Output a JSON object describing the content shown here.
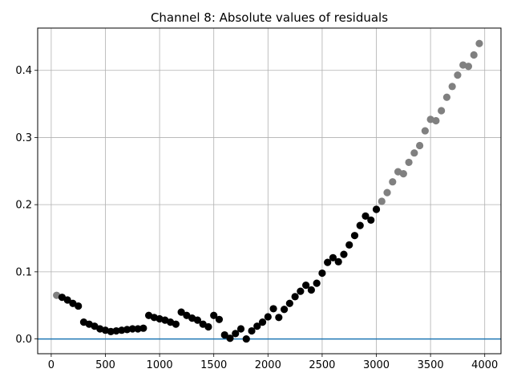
{
  "chart_data": {
    "type": "scatter",
    "title": "Channel 8: Absolute values of residuals",
    "xlabel": "",
    "ylabel": "",
    "xlim": [
      -125,
      4150
    ],
    "ylim": [
      -0.022,
      0.463
    ],
    "xticks": [
      0,
      500,
      1000,
      1500,
      2000,
      2500,
      3000,
      3500,
      4000
    ],
    "yticks": [
      0.0,
      0.1,
      0.2,
      0.3,
      0.4
    ],
    "ytick_labels": [
      "0.0",
      "0.1",
      "0.2",
      "0.3",
      "0.4"
    ],
    "grid": true,
    "hline": {
      "y": 0.0,
      "color": "#1f77b4"
    },
    "colors": {
      "inlier": "#000000",
      "outlier": "#808080"
    },
    "series": [
      {
        "color": "#808080",
        "points": [
          [
            50,
            0.065
          ],
          [
            3000,
            0.193
          ],
          [
            3050,
            0.205
          ],
          [
            3100,
            0.218
          ],
          [
            3150,
            0.234
          ],
          [
            3200,
            0.249
          ],
          [
            3250,
            0.246
          ],
          [
            3300,
            0.263
          ],
          [
            3350,
            0.277
          ],
          [
            3400,
            0.288
          ],
          [
            3450,
            0.31
          ],
          [
            3500,
            0.327
          ],
          [
            3550,
            0.325
          ],
          [
            3600,
            0.34
          ],
          [
            3650,
            0.36
          ],
          [
            3700,
            0.376
          ],
          [
            3750,
            0.393
          ],
          [
            3800,
            0.408
          ],
          [
            3850,
            0.406
          ],
          [
            3900,
            0.423
          ],
          [
            3950,
            0.44
          ]
        ]
      },
      {
        "color": "#000000",
        "points": [
          [
            100,
            0.062
          ],
          [
            150,
            0.058
          ],
          [
            200,
            0.053
          ],
          [
            250,
            0.049
          ],
          [
            300,
            0.025
          ],
          [
            350,
            0.022
          ],
          [
            400,
            0.019
          ],
          [
            450,
            0.015
          ],
          [
            500,
            0.013
          ],
          [
            550,
            0.011
          ],
          [
            600,
            0.012
          ],
          [
            650,
            0.013
          ],
          [
            700,
            0.014
          ],
          [
            750,
            0.015
          ],
          [
            800,
            0.015
          ],
          [
            850,
            0.016
          ],
          [
            900,
            0.035
          ],
          [
            950,
            0.032
          ],
          [
            1000,
            0.03
          ],
          [
            1050,
            0.028
          ],
          [
            1100,
            0.025
          ],
          [
            1150,
            0.022
          ],
          [
            1200,
            0.04
          ],
          [
            1250,
            0.035
          ],
          [
            1300,
            0.031
          ],
          [
            1350,
            0.028
          ],
          [
            1400,
            0.022
          ],
          [
            1450,
            0.018
          ],
          [
            1500,
            0.035
          ],
          [
            1550,
            0.029
          ],
          [
            1600,
            0.006
          ],
          [
            1650,
            0.001
          ],
          [
            1700,
            0.008
          ],
          [
            1750,
            0.015
          ],
          [
            1800,
            0.0
          ],
          [
            1850,
            0.012
          ],
          [
            1900,
            0.019
          ],
          [
            1950,
            0.025
          ],
          [
            2000,
            0.033
          ],
          [
            2050,
            0.045
          ],
          [
            2100,
            0.032
          ],
          [
            2150,
            0.044
          ],
          [
            2200,
            0.053
          ],
          [
            2250,
            0.063
          ],
          [
            2300,
            0.071
          ],
          [
            2350,
            0.08
          ],
          [
            2400,
            0.073
          ],
          [
            2450,
            0.083
          ],
          [
            2500,
            0.098
          ],
          [
            2550,
            0.114
          ],
          [
            2600,
            0.121
          ],
          [
            2650,
            0.115
          ],
          [
            2700,
            0.126
          ],
          [
            2750,
            0.14
          ],
          [
            2800,
            0.154
          ],
          [
            2850,
            0.169
          ],
          [
            2900,
            0.183
          ],
          [
            2950,
            0.177
          ],
          [
            3000,
            0.193
          ]
        ]
      }
    ]
  }
}
